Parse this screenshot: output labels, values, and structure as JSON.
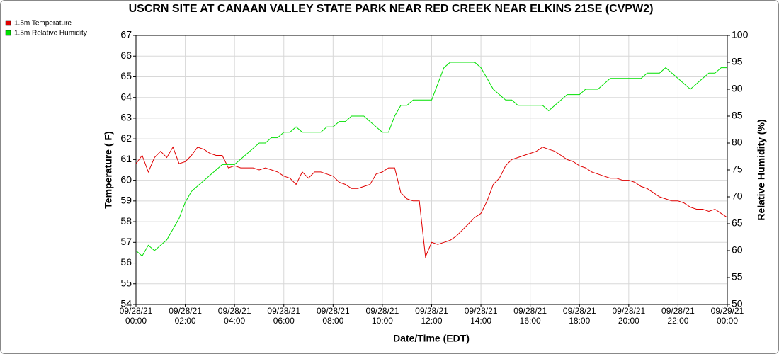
{
  "chart_data": {
    "type": "line",
    "title": "USCRN SITE AT CANAAN VALLEY STATE PARK NEAR RED CREEK NEAR ELKINS 21SE (CVPW2)",
    "xlabel": "Date/Time (EDT)",
    "ylabel": "Temperature ( F)",
    "y2label": "Relative Humidity (%)",
    "grid": true,
    "legend": "top-left",
    "x": [
      "2021-09-28T00:00",
      "2021-09-28T00:15",
      "2021-09-28T00:30",
      "2021-09-28T00:45",
      "2021-09-28T01:00",
      "2021-09-28T01:15",
      "2021-09-28T01:30",
      "2021-09-28T01:45",
      "2021-09-28T02:00",
      "2021-09-28T02:15",
      "2021-09-28T02:30",
      "2021-09-28T02:45",
      "2021-09-28T03:00",
      "2021-09-28T03:15",
      "2021-09-28T03:30",
      "2021-09-28T03:45",
      "2021-09-28T04:00",
      "2021-09-28T04:15",
      "2021-09-28T04:30",
      "2021-09-28T04:45",
      "2021-09-28T05:00",
      "2021-09-28T05:15",
      "2021-09-28T05:30",
      "2021-09-28T05:45",
      "2021-09-28T06:00",
      "2021-09-28T06:15",
      "2021-09-28T06:30",
      "2021-09-28T06:45",
      "2021-09-28T07:00",
      "2021-09-28T07:15",
      "2021-09-28T07:30",
      "2021-09-28T07:45",
      "2021-09-28T08:00",
      "2021-09-28T08:15",
      "2021-09-28T08:30",
      "2021-09-28T08:45",
      "2021-09-28T09:00",
      "2021-09-28T09:15",
      "2021-09-28T09:30",
      "2021-09-28T09:45",
      "2021-09-28T10:00",
      "2021-09-28T10:15",
      "2021-09-28T10:30",
      "2021-09-28T10:45",
      "2021-09-28T11:00",
      "2021-09-28T11:15",
      "2021-09-28T11:30",
      "2021-09-28T11:45",
      "2021-09-28T12:00",
      "2021-09-28T12:15",
      "2021-09-28T12:30",
      "2021-09-28T12:45",
      "2021-09-28T13:00",
      "2021-09-28T13:15",
      "2021-09-28T13:30",
      "2021-09-28T13:45",
      "2021-09-28T14:00",
      "2021-09-28T14:15",
      "2021-09-28T14:30",
      "2021-09-28T14:45",
      "2021-09-28T15:00",
      "2021-09-28T15:15",
      "2021-09-28T15:30",
      "2021-09-28T15:45",
      "2021-09-28T16:00",
      "2021-09-28T16:15",
      "2021-09-28T16:30",
      "2021-09-28T16:45",
      "2021-09-28T17:00",
      "2021-09-28T17:15",
      "2021-09-28T17:30",
      "2021-09-28T17:45",
      "2021-09-28T18:00",
      "2021-09-28T18:15",
      "2021-09-28T18:30",
      "2021-09-28T18:45",
      "2021-09-28T19:00",
      "2021-09-28T19:15",
      "2021-09-28T19:30",
      "2021-09-28T19:45",
      "2021-09-28T20:00",
      "2021-09-28T20:15",
      "2021-09-28T20:30",
      "2021-09-28T20:45",
      "2021-09-28T21:00",
      "2021-09-28T21:15",
      "2021-09-28T21:30",
      "2021-09-28T21:45",
      "2021-09-28T22:00",
      "2021-09-28T22:15",
      "2021-09-28T22:30",
      "2021-09-28T22:45",
      "2021-09-28T23:00",
      "2021-09-28T23:15",
      "2021-09-28T23:30",
      "2021-09-28T23:45",
      "2021-09-29T00:00"
    ],
    "series": [
      {
        "name": "1.5m Temperature",
        "color": "#e00000",
        "axis": "y",
        "values": [
          60.8,
          61.2,
          60.4,
          61.1,
          61.4,
          61.1,
          61.6,
          60.8,
          60.9,
          61.2,
          61.6,
          61.5,
          61.3,
          61.2,
          61.2,
          60.6,
          60.7,
          60.6,
          60.6,
          60.6,
          60.5,
          60.6,
          60.5,
          60.4,
          60.2,
          60.1,
          59.8,
          60.4,
          60.1,
          60.4,
          60.4,
          60.3,
          60.2,
          59.9,
          59.8,
          59.6,
          59.6,
          59.7,
          59.8,
          60.3,
          60.4,
          60.6,
          60.6,
          59.4,
          59.1,
          59.0,
          59.0,
          56.3,
          57.0,
          56.9,
          57.0,
          57.1,
          57.3,
          57.6,
          57.9,
          58.2,
          58.4,
          59.0,
          59.8,
          60.1,
          60.7,
          61.0,
          61.1,
          61.2,
          61.3,
          61.4,
          61.6,
          61.5,
          61.4,
          61.2,
          61.0,
          60.9,
          60.7,
          60.6,
          60.4,
          60.3,
          60.2,
          60.1,
          60.1,
          60.0,
          60.0,
          59.9,
          59.7,
          59.6,
          59.4,
          59.2,
          59.1,
          59.0,
          59.0,
          58.9,
          58.7,
          58.6,
          58.6,
          58.5,
          58.6,
          58.4,
          58.2
        ]
      },
      {
        "name": "1.5m Relative Humidity",
        "color": "#00e000",
        "axis": "y2",
        "values": [
          60,
          59,
          61,
          60,
          61,
          62,
          64,
          66,
          69,
          71,
          72,
          73,
          74,
          75,
          76,
          76,
          76,
          77,
          78,
          79,
          80,
          80,
          81,
          81,
          82,
          82,
          83,
          82,
          82,
          82,
          82,
          83,
          83,
          84,
          84,
          85,
          85,
          85,
          84,
          83,
          82,
          82,
          85,
          87,
          87,
          88,
          88,
          88,
          88,
          91,
          94,
          95,
          95,
          95,
          95,
          95,
          94,
          92,
          90,
          89,
          88,
          88,
          87,
          87,
          87,
          87,
          87,
          86,
          87,
          88,
          89,
          89,
          89,
          90,
          90,
          90,
          91,
          92,
          92,
          92,
          92,
          92,
          92,
          93,
          93,
          93,
          94,
          93,
          92,
          91,
          90,
          91,
          92,
          93,
          93,
          94,
          94
        ]
      }
    ],
    "xlim": [
      "2021-09-28T00:00",
      "2021-09-29T00:00"
    ],
    "xticks": [
      {
        "value": "2021-09-28T00:00",
        "label": "09/28/21 00:00"
      },
      {
        "value": "2021-09-28T02:00",
        "label": "09/28/21 02:00"
      },
      {
        "value": "2021-09-28T04:00",
        "label": "09/28/21 04:00"
      },
      {
        "value": "2021-09-28T06:00",
        "label": "09/28/21 06:00"
      },
      {
        "value": "2021-09-28T08:00",
        "label": "09/28/21 08:00"
      },
      {
        "value": "2021-09-28T10:00",
        "label": "09/28/21 10:00"
      },
      {
        "value": "2021-09-28T12:00",
        "label": "09/28/21 12:00"
      },
      {
        "value": "2021-09-28T14:00",
        "label": "09/28/21 14:00"
      },
      {
        "value": "2021-09-28T16:00",
        "label": "09/28/21 16:00"
      },
      {
        "value": "2021-09-28T18:00",
        "label": "09/28/21 18:00"
      },
      {
        "value": "2021-09-28T20:00",
        "label": "09/28/21 20:00"
      },
      {
        "value": "2021-09-28T22:00",
        "label": "09/28/21 22:00"
      },
      {
        "value": "2021-09-29T00:00",
        "label": "09/29/21 00:00"
      }
    ],
    "ylim": [
      54,
      67
    ],
    "yticks": [
      54,
      55,
      56,
      57,
      58,
      59,
      60,
      61,
      62,
      63,
      64,
      65,
      66,
      67
    ],
    "y2lim": [
      50,
      100
    ],
    "y2ticks": [
      50,
      55,
      60,
      65,
      70,
      75,
      80,
      85,
      90,
      95,
      100
    ]
  }
}
